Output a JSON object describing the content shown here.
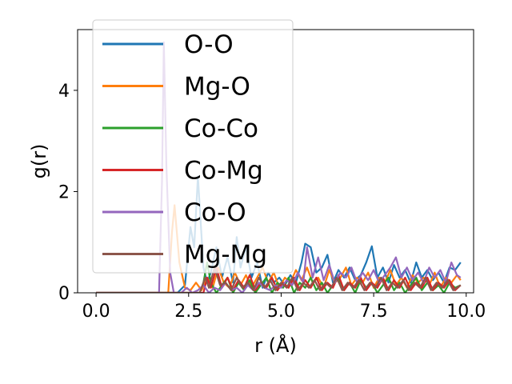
{
  "chart_data": {
    "type": "line",
    "title": "",
    "xlabel": "r (Å)",
    "ylabel": "g(r)",
    "xlim": [
      -0.5,
      10.2
    ],
    "ylim": [
      0,
      5.2
    ],
    "xticks": [
      0.0,
      2.5,
      5.0,
      7.5,
      10.0
    ],
    "xtick_labels": [
      "0.0",
      "2.5",
      "5.0",
      "7.5",
      "10.0"
    ],
    "yticks": [
      0,
      2,
      4
    ],
    "ytick_labels": [
      "0",
      "2",
      "4"
    ],
    "grid": false,
    "legend_position": "upper-left",
    "series": [
      {
        "name": "O-O",
        "color": "#1f77b4",
        "points": [
          [
            0,
            0
          ],
          [
            2.2,
            0
          ],
          [
            2.4,
            0.15
          ],
          [
            2.55,
            1.3
          ],
          [
            2.65,
            0.9
          ],
          [
            2.75,
            2.3
          ],
          [
            2.9,
            0.5
          ],
          [
            3.0,
            0.2
          ],
          [
            3.1,
            0.4
          ],
          [
            3.25,
            0.9
          ],
          [
            3.4,
            0.3
          ],
          [
            3.55,
            0.7
          ],
          [
            3.7,
            0.2
          ],
          [
            3.8,
            1.1
          ],
          [
            3.9,
            0.5
          ],
          [
            4.05,
            0.9
          ],
          [
            4.2,
            0.3
          ],
          [
            4.35,
            0.6
          ],
          [
            4.5,
            0.1
          ],
          [
            4.65,
            0.4
          ],
          [
            4.8,
            0.2
          ],
          [
            4.95,
            0.3
          ],
          [
            5.1,
            0.15
          ],
          [
            5.25,
            0.35
          ],
          [
            5.4,
            0.2
          ],
          [
            5.55,
            0.6
          ],
          [
            5.65,
            0.97
          ],
          [
            5.8,
            0.9
          ],
          [
            5.95,
            0.4
          ],
          [
            6.1,
            0.5
          ],
          [
            6.25,
            0.75
          ],
          [
            6.4,
            0.2
          ],
          [
            6.55,
            0.45
          ],
          [
            6.7,
            0.3
          ],
          [
            6.85,
            0.5
          ],
          [
            7.0,
            0.25
          ],
          [
            7.15,
            0.35
          ],
          [
            7.3,
            0.6
          ],
          [
            7.45,
            0.92
          ],
          [
            7.6,
            0.3
          ],
          [
            7.75,
            0.5
          ],
          [
            7.9,
            0.2
          ],
          [
            8.05,
            0.55
          ],
          [
            8.2,
            0.3
          ],
          [
            8.35,
            0.45
          ],
          [
            8.5,
            0.2
          ],
          [
            8.65,
            0.6
          ],
          [
            8.8,
            0.3
          ],
          [
            8.95,
            0.45
          ],
          [
            9.1,
            0.25
          ],
          [
            9.25,
            0.4
          ],
          [
            9.4,
            0.2
          ],
          [
            9.55,
            0.5
          ],
          [
            9.7,
            0.45
          ],
          [
            9.85,
            0.6
          ]
        ]
      },
      {
        "name": "Mg-O",
        "color": "#ff7f0e",
        "points": [
          [
            0,
            0
          ],
          [
            1.95,
            0
          ],
          [
            2.05,
            1.2
          ],
          [
            2.12,
            1.73
          ],
          [
            2.25,
            0.6
          ],
          [
            2.4,
            0.1
          ],
          [
            2.55,
            0.05
          ],
          [
            2.7,
            0.2
          ],
          [
            2.85,
            0.05
          ],
          [
            3.0,
            0.3
          ],
          [
            3.15,
            0.1
          ],
          [
            3.3,
            0.5
          ],
          [
            3.45,
            0.2
          ],
          [
            3.6,
            0.1
          ],
          [
            3.75,
            0.4
          ],
          [
            3.9,
            0.15
          ],
          [
            4.05,
            0.35
          ],
          [
            4.2,
            0.1
          ],
          [
            4.35,
            0.3
          ],
          [
            4.5,
            0.5
          ],
          [
            4.65,
            0.2
          ],
          [
            4.8,
            0.4
          ],
          [
            4.95,
            0.1
          ],
          [
            5.1,
            0.3
          ],
          [
            5.25,
            0.2
          ],
          [
            5.4,
            0.45
          ],
          [
            5.55,
            0.25
          ],
          [
            5.7,
            0.5
          ],
          [
            5.85,
            0.2
          ],
          [
            6.0,
            0.3
          ],
          [
            6.15,
            0.1
          ],
          [
            6.3,
            0.45
          ],
          [
            6.45,
            0.2
          ],
          [
            6.6,
            0.3
          ],
          [
            6.75,
            0.5
          ],
          [
            6.9,
            0.15
          ],
          [
            7.05,
            0.3
          ],
          [
            7.2,
            0.2
          ],
          [
            7.35,
            0.4
          ],
          [
            7.5,
            0.1
          ],
          [
            7.65,
            0.3
          ],
          [
            7.8,
            0.2
          ],
          [
            7.95,
            0.45
          ],
          [
            8.1,
            0.15
          ],
          [
            8.25,
            0.3
          ],
          [
            8.4,
            0.1
          ],
          [
            8.55,
            0.35
          ],
          [
            8.7,
            0.2
          ],
          [
            8.85,
            0.3
          ],
          [
            9.0,
            0.15
          ],
          [
            9.15,
            0.4
          ],
          [
            9.3,
            0.1
          ],
          [
            9.45,
            0.3
          ],
          [
            9.6,
            0.2
          ],
          [
            9.75,
            0.35
          ],
          [
            9.85,
            0.25
          ]
        ]
      },
      {
        "name": "Co-Co",
        "color": "#2ca02c",
        "points": [
          [
            0,
            0
          ],
          [
            2.8,
            0
          ],
          [
            2.9,
            0.2
          ],
          [
            3.0,
            0.6
          ],
          [
            3.1,
            0.2
          ],
          [
            3.25,
            0
          ],
          [
            3.4,
            0.15
          ],
          [
            3.55,
            0.3
          ],
          [
            3.7,
            0
          ],
          [
            3.85,
            0.2
          ],
          [
            4.0,
            0.05
          ],
          [
            4.15,
            0.25
          ],
          [
            4.3,
            0
          ],
          [
            4.45,
            0.15
          ],
          [
            4.6,
            0.3
          ],
          [
            4.75,
            0
          ],
          [
            4.9,
            0.2
          ],
          [
            5.05,
            0.1
          ],
          [
            5.2,
            0.3
          ],
          [
            5.35,
            0
          ],
          [
            5.5,
            0.2
          ],
          [
            5.65,
            0.1
          ],
          [
            5.8,
            0.3
          ],
          [
            5.95,
            0.05
          ],
          [
            6.1,
            0.2
          ],
          [
            6.25,
            0
          ],
          [
            6.4,
            0.15
          ],
          [
            6.55,
            0.3
          ],
          [
            6.7,
            0.05
          ],
          [
            6.85,
            0.2
          ],
          [
            7.0,
            0
          ],
          [
            7.15,
            0.25
          ],
          [
            7.3,
            0.1
          ],
          [
            7.45,
            0.2
          ],
          [
            7.6,
            0
          ],
          [
            7.75,
            0.15
          ],
          [
            7.9,
            0.3
          ],
          [
            8.05,
            0.05
          ],
          [
            8.2,
            0.2
          ],
          [
            8.35,
            0
          ],
          [
            8.5,
            0.15
          ],
          [
            8.65,
            0.3
          ],
          [
            8.8,
            0.05
          ],
          [
            8.95,
            0.2
          ],
          [
            9.1,
            0.05
          ],
          [
            9.25,
            0.15
          ],
          [
            9.4,
            0
          ],
          [
            9.55,
            0.2
          ],
          [
            9.7,
            0.1
          ],
          [
            9.85,
            0.15
          ]
        ]
      },
      {
        "name": "Co-Mg",
        "color": "#d62728",
        "points": [
          [
            0,
            0
          ],
          [
            2.9,
            0
          ],
          [
            3.0,
            0.3
          ],
          [
            3.1,
            0.1
          ],
          [
            3.25,
            0.5
          ],
          [
            3.4,
            0.1
          ],
          [
            3.55,
            0.3
          ],
          [
            3.7,
            0.05
          ],
          [
            3.85,
            0.25
          ],
          [
            4.0,
            0.1
          ],
          [
            4.15,
            0.35
          ],
          [
            4.3,
            0.05
          ],
          [
            4.45,
            0.2
          ],
          [
            4.6,
            0.1
          ],
          [
            4.75,
            0.3
          ],
          [
            4.9,
            0.05
          ],
          [
            5.05,
            0.2
          ],
          [
            5.2,
            0.1
          ],
          [
            5.35,
            0.3
          ],
          [
            5.5,
            0.05
          ],
          [
            5.65,
            0.25
          ],
          [
            5.8,
            0.1
          ],
          [
            5.95,
            0.3
          ],
          [
            6.1,
            0.05
          ],
          [
            6.25,
            0.2
          ],
          [
            6.4,
            0.1
          ],
          [
            6.55,
            0.35
          ],
          [
            6.7,
            0.05
          ],
          [
            6.85,
            0.2
          ],
          [
            7.0,
            0.1
          ],
          [
            7.15,
            0.3
          ],
          [
            7.3,
            0.05
          ],
          [
            7.45,
            0.2
          ],
          [
            7.6,
            0.1
          ],
          [
            7.75,
            0.3
          ],
          [
            7.9,
            0.05
          ],
          [
            8.05,
            0.25
          ],
          [
            8.2,
            0.1
          ],
          [
            8.35,
            0.3
          ],
          [
            8.5,
            0.05
          ],
          [
            8.65,
            0.2
          ],
          [
            8.8,
            0.1
          ],
          [
            8.95,
            0.3
          ],
          [
            9.1,
            0.05
          ],
          [
            9.25,
            0.2
          ],
          [
            9.4,
            0.1
          ],
          [
            9.55,
            0.25
          ],
          [
            9.7,
            0.05
          ],
          [
            9.85,
            0.15
          ]
        ]
      },
      {
        "name": "Co-O",
        "color": "#9467bd",
        "points": [
          [
            0,
            0
          ],
          [
            1.7,
            0
          ],
          [
            1.78,
            2.2
          ],
          [
            1.83,
            4.95
          ],
          [
            1.9,
            2.5
          ],
          [
            2.0,
            0.4
          ],
          [
            2.1,
            0
          ],
          [
            2.3,
            0
          ],
          [
            2.45,
            0.1
          ],
          [
            2.6,
            0
          ],
          [
            2.75,
            0.05
          ],
          [
            2.9,
            0.15
          ],
          [
            3.05,
            0
          ],
          [
            3.2,
            0.1
          ],
          [
            3.35,
            0.05
          ],
          [
            3.5,
            0.2
          ],
          [
            3.65,
            0.05
          ],
          [
            3.8,
            0.1
          ],
          [
            3.95,
            0
          ],
          [
            4.1,
            0.15
          ],
          [
            4.25,
            0.05
          ],
          [
            4.4,
            0.2
          ],
          [
            4.55,
            0.1
          ],
          [
            4.7,
            0.05
          ],
          [
            4.85,
            0.15
          ],
          [
            5.0,
            0.1
          ],
          [
            5.15,
            0.25
          ],
          [
            5.3,
            0.15
          ],
          [
            5.45,
            0.4
          ],
          [
            5.6,
            0.2
          ],
          [
            5.7,
            0.9
          ],
          [
            5.85,
            0.3
          ],
          [
            6.0,
            0.7
          ],
          [
            6.15,
            0.25
          ],
          [
            6.3,
            0.55
          ],
          [
            6.45,
            0.2
          ],
          [
            6.6,
            0.4
          ],
          [
            6.75,
            0.3
          ],
          [
            6.9,
            0.5
          ],
          [
            7.05,
            0.2
          ],
          [
            7.2,
            0.4
          ],
          [
            7.35,
            0.25
          ],
          [
            7.5,
            0.45
          ],
          [
            7.65,
            0.2
          ],
          [
            7.8,
            0.35
          ],
          [
            7.95,
            0.5
          ],
          [
            8.1,
            0.7
          ],
          [
            8.25,
            0.3
          ],
          [
            8.4,
            0.5
          ],
          [
            8.55,
            0.25
          ],
          [
            8.7,
            0.4
          ],
          [
            8.85,
            0.2
          ],
          [
            9.0,
            0.5
          ],
          [
            9.15,
            0.3
          ],
          [
            9.3,
            0.45
          ],
          [
            9.45,
            0.2
          ],
          [
            9.6,
            0.6
          ],
          [
            9.75,
            0.35
          ],
          [
            9.85,
            0.3
          ]
        ]
      },
      {
        "name": "Mg-Mg",
        "color": "#8c564b",
        "points": [
          [
            0,
            0
          ],
          [
            2.8,
            0
          ],
          [
            2.95,
            0.3
          ],
          [
            3.05,
            0.1
          ],
          [
            3.2,
            0.5
          ],
          [
            3.35,
            0.15
          ],
          [
            3.5,
            0.2
          ],
          [
            3.65,
            0.05
          ],
          [
            3.8,
            0.3
          ],
          [
            3.95,
            0.1
          ],
          [
            4.1,
            0.2
          ],
          [
            4.25,
            0.05
          ],
          [
            4.4,
            0.3
          ],
          [
            4.55,
            0.1
          ],
          [
            4.7,
            0.25
          ],
          [
            4.85,
            0.05
          ],
          [
            5.0,
            0.2
          ],
          [
            5.15,
            0.1
          ],
          [
            5.3,
            0.3
          ],
          [
            5.45,
            0.05
          ],
          [
            5.6,
            0.2
          ],
          [
            5.75,
            0.1
          ],
          [
            5.9,
            0.25
          ],
          [
            6.05,
            0.05
          ],
          [
            6.2,
            0.2
          ],
          [
            6.35,
            0.1
          ],
          [
            6.5,
            0.3
          ],
          [
            6.65,
            0.05
          ],
          [
            6.8,
            0.2
          ],
          [
            6.95,
            0.1
          ],
          [
            7.1,
            0.25
          ],
          [
            7.25,
            0.05
          ],
          [
            7.4,
            0.2
          ],
          [
            7.55,
            0.1
          ],
          [
            7.7,
            0.3
          ],
          [
            7.85,
            0.05
          ],
          [
            8.0,
            0.2
          ],
          [
            8.15,
            0.1
          ],
          [
            8.3,
            0.25
          ],
          [
            8.45,
            0.05
          ],
          [
            8.6,
            0.2
          ],
          [
            8.75,
            0.1
          ],
          [
            8.9,
            0.3
          ],
          [
            9.05,
            0.05
          ],
          [
            9.2,
            0.2
          ],
          [
            9.35,
            0.1
          ],
          [
            9.5,
            0.25
          ],
          [
            9.65,
            0.05
          ],
          [
            9.85,
            0.15
          ]
        ]
      }
    ]
  }
}
